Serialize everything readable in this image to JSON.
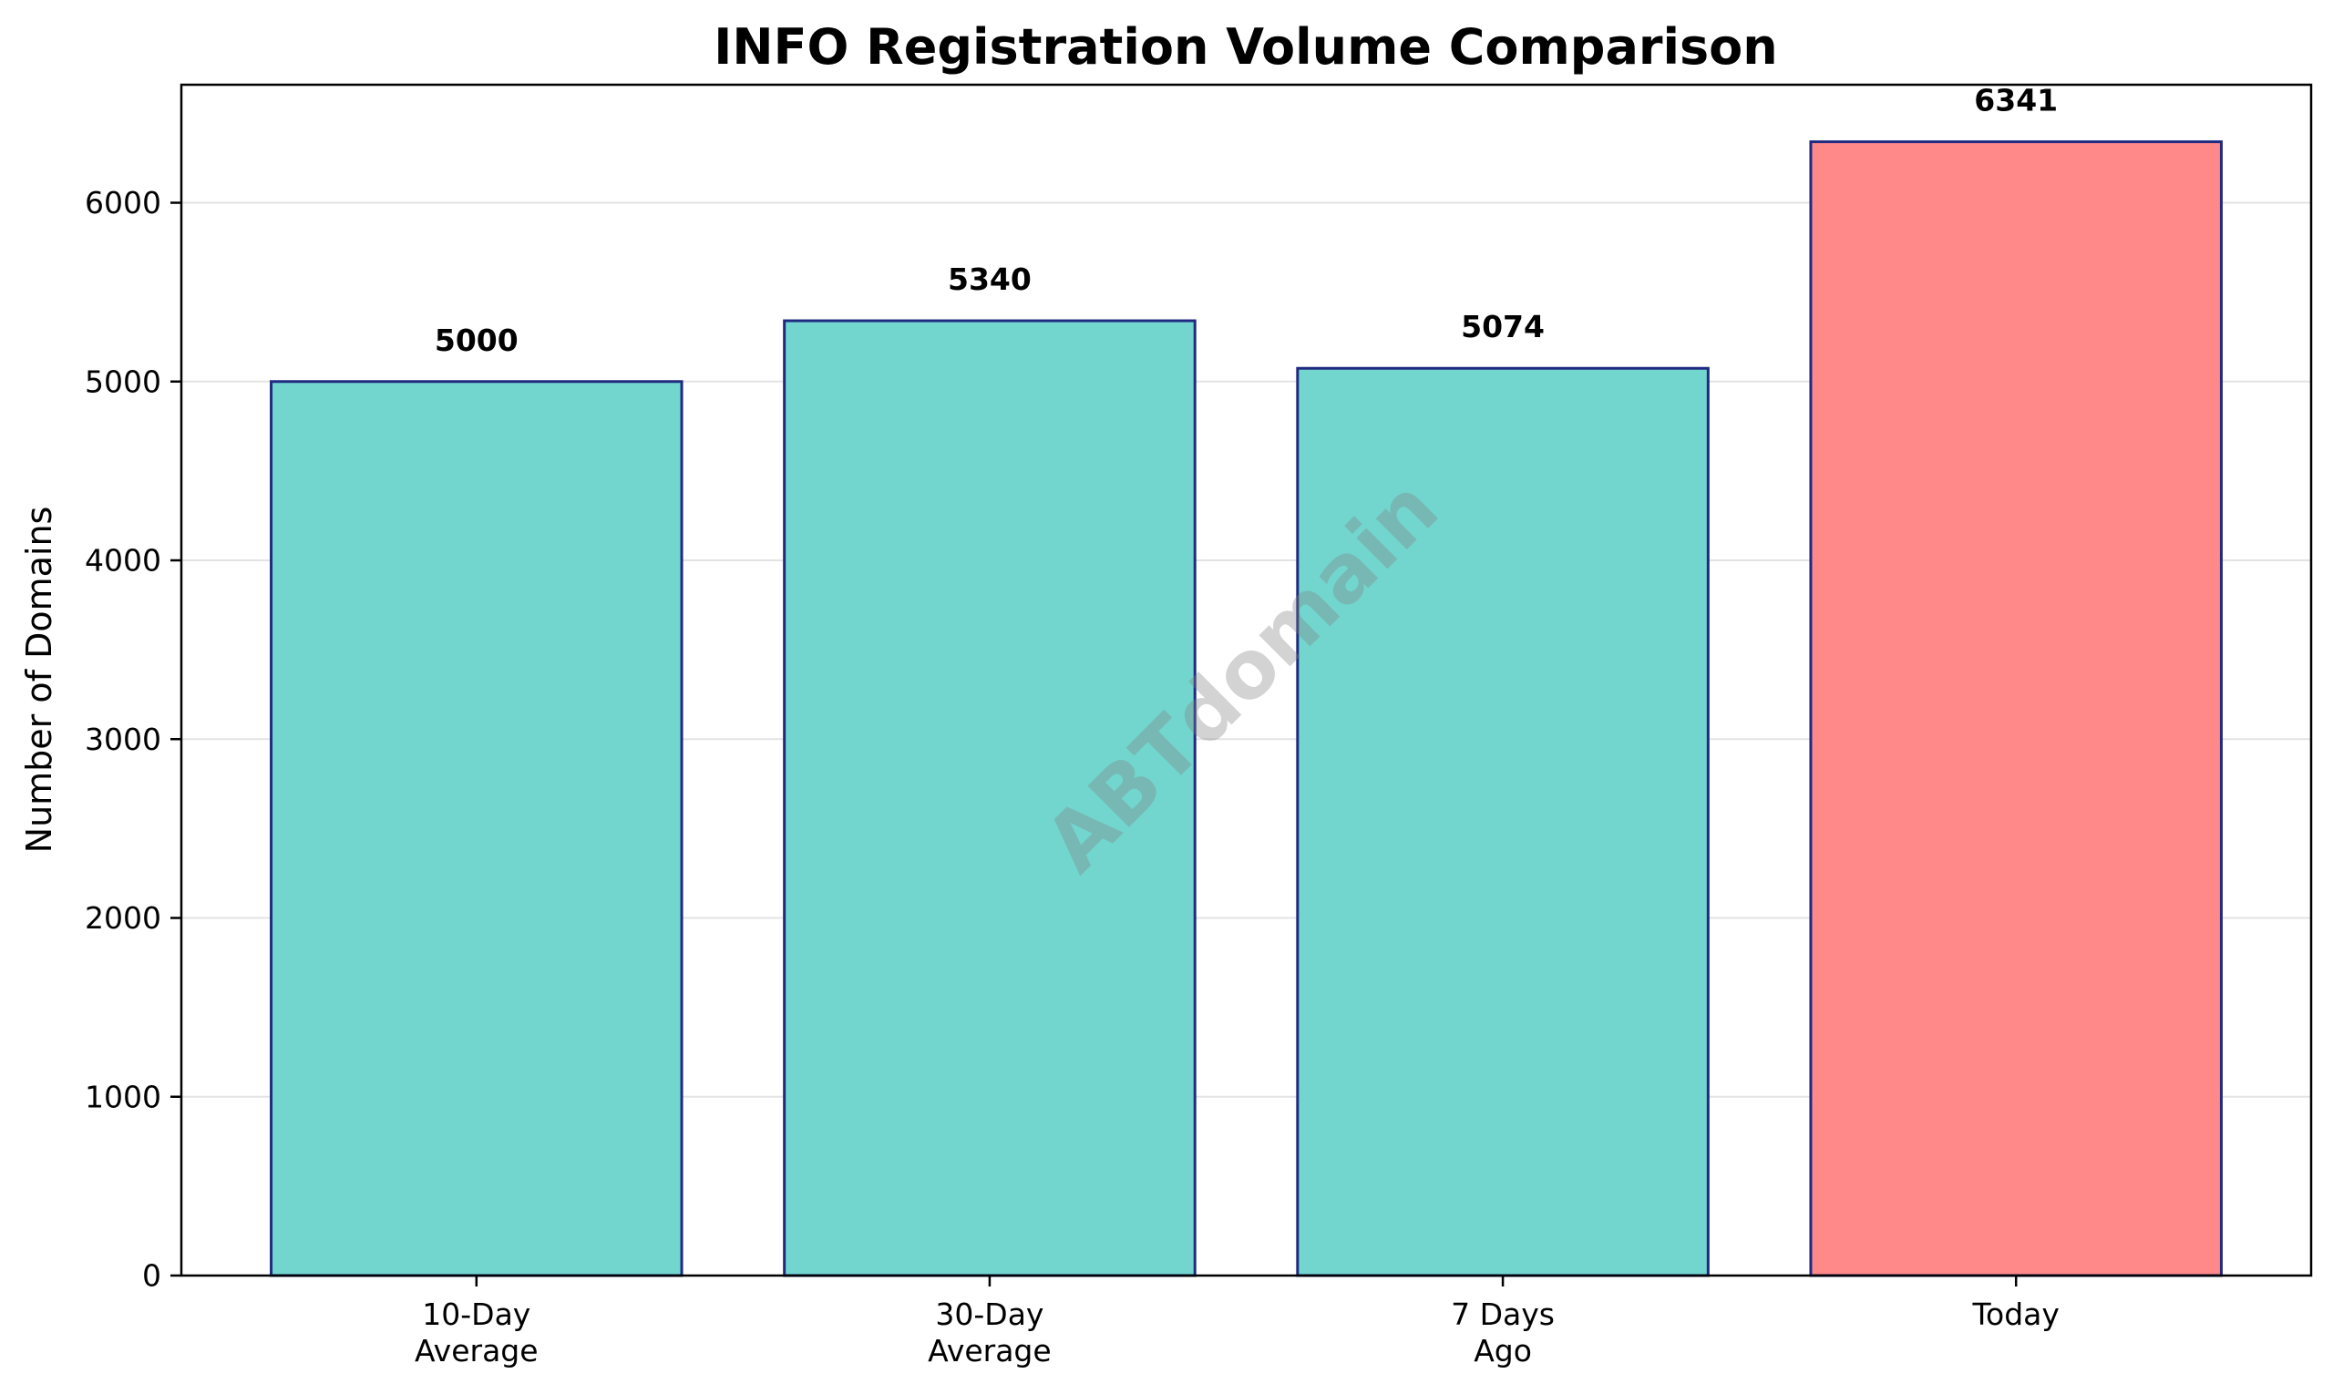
{
  "chart_data": {
    "type": "bar",
    "title": "INFO Registration Volume Comparison",
    "xlabel": "",
    "ylabel": "Number of Domains",
    "categories": [
      [
        "10-Day",
        "Average"
      ],
      [
        "30-Day",
        "Average"
      ],
      [
        "7 Days",
        "Ago"
      ],
      [
        "Today"
      ]
    ],
    "values": [
      5000,
      5340,
      5074,
      6341
    ],
    "data_labels": [
      "5000",
      "5340",
      "5074",
      "6341"
    ],
    "bar_colors": [
      "#72d6cf",
      "#72d6cf",
      "#72d6cf",
      "#ff8888"
    ],
    "bar_edge_color": "#1f2a80",
    "ylim": [
      0,
      6660
    ],
    "yticks": [
      0,
      1000,
      2000,
      3000,
      4000,
      5000,
      6000
    ],
    "grid": true,
    "grid_axis": "y",
    "legend": "none"
  },
  "watermark": {
    "text": "ABTdomain"
  }
}
